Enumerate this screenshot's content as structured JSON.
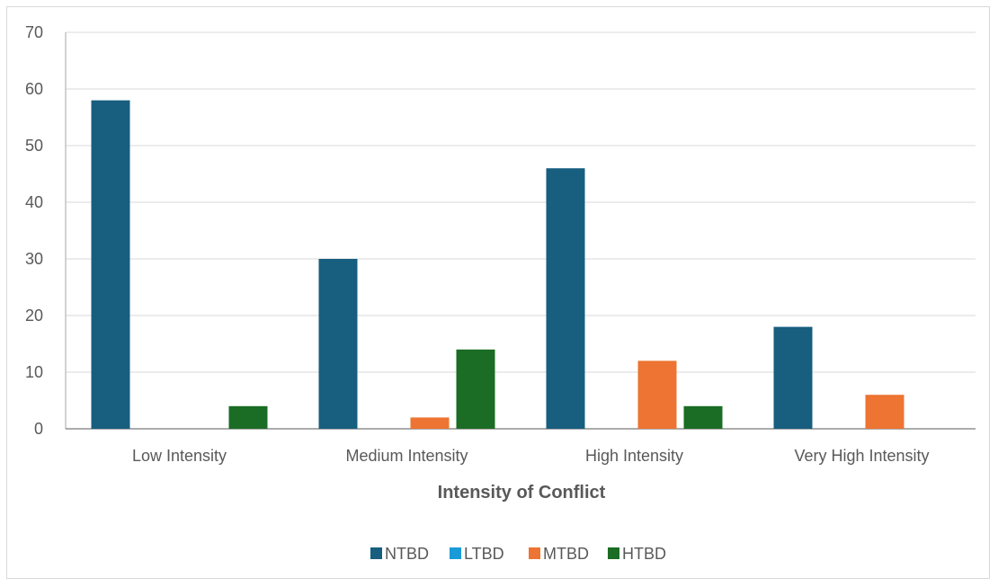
{
  "chart_data": {
    "type": "bar",
    "categories": [
      "Low Intensity",
      "Medium Intensity",
      "High Intensity",
      "Very High Intensity"
    ],
    "series": [
      {
        "name": "NTBD",
        "color": "#175e7f",
        "values": [
          58,
          30,
          46,
          18
        ]
      },
      {
        "name": "LTBD",
        "color": "#1a9bd7",
        "values": [
          0,
          0,
          0,
          0
        ]
      },
      {
        "name": "MTBD",
        "color": "#ed7432",
        "values": [
          0,
          2,
          12,
          6
        ]
      },
      {
        "name": "HTBD",
        "color": "#1b6c24",
        "values": [
          4,
          14,
          4,
          0
        ]
      }
    ],
    "title": "",
    "xlabel": "Intensity of Conflict",
    "ylabel": "",
    "ylim": [
      0,
      70
    ],
    "yticks": [
      0,
      10,
      20,
      30,
      40,
      50,
      60,
      70
    ],
    "grid": true,
    "legend_position": "bottom"
  }
}
